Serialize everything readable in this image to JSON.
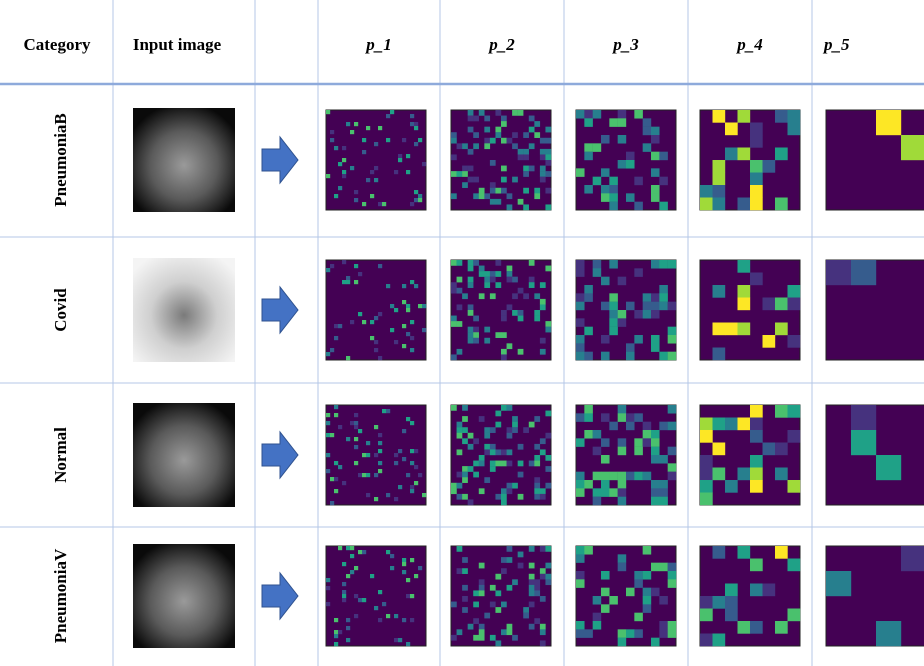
{
  "header": {
    "category": "Category",
    "input_image": "Input image",
    "maps": [
      "p_1",
      "p_2",
      "p_3",
      "p_4",
      "p_5"
    ]
  },
  "rows": [
    "PneumoniaB",
    "Covid",
    "Normal",
    "PneumoniaV"
  ]
}
